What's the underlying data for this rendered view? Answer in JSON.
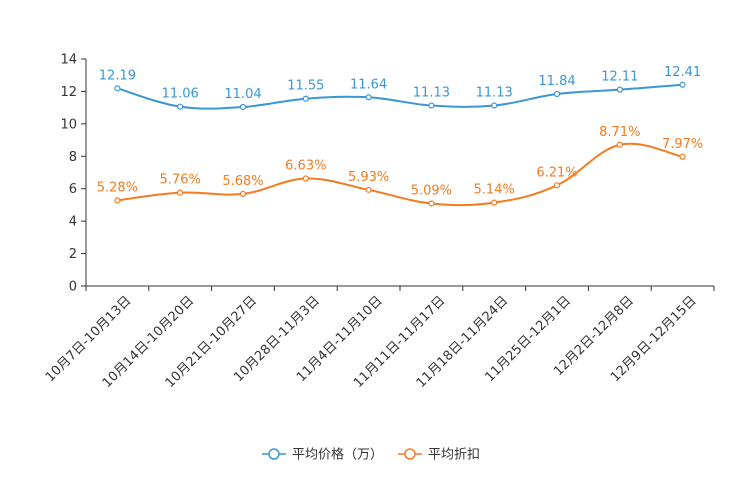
{
  "chart_data": {
    "type": "line",
    "title": "",
    "xlabel": "",
    "ylabel": "",
    "ylim": [
      0,
      14
    ],
    "yticks": [
      0,
      2,
      4,
      6,
      8,
      10,
      12,
      14
    ],
    "ytick_labels": [
      "0",
      "2",
      "4",
      "6",
      "8",
      "10",
      "12",
      "14"
    ],
    "categories": [
      "10月7日-10月13日",
      "10月14日-10月20日",
      "10月21日-10月27日",
      "10月28日-11月3日",
      "11月4日-11月10日",
      "11月11日-11月17日",
      "11月18日-11月24日",
      "11月25日-12月1日",
      "12月2日-12月8日",
      "12月9日-12月15日"
    ],
    "series": [
      {
        "name": "平均价格（万）",
        "color": "#3a97d4",
        "values": [
          12.19,
          11.06,
          11.04,
          11.55,
          11.64,
          11.13,
          11.13,
          11.84,
          12.11,
          12.41
        ],
        "labels": [
          "12.19",
          "11.06",
          "11.04",
          "11.55",
          "11.64",
          "11.13",
          "11.13",
          "11.84",
          "12.11",
          "12.41"
        ]
      },
      {
        "name": "平均折扣",
        "color": "#f47b20",
        "values": [
          5.28,
          5.76,
          5.68,
          6.63,
          5.93,
          5.09,
          5.14,
          6.21,
          8.71,
          7.97
        ],
        "labels": [
          "5.28%",
          "5.76%",
          "5.68%",
          "6.63%",
          "5.93%",
          "5.09%",
          "5.14%",
          "6.21%",
          "8.71%",
          "7.97%"
        ]
      }
    ],
    "legend": {
      "position": "bottom-center"
    }
  }
}
